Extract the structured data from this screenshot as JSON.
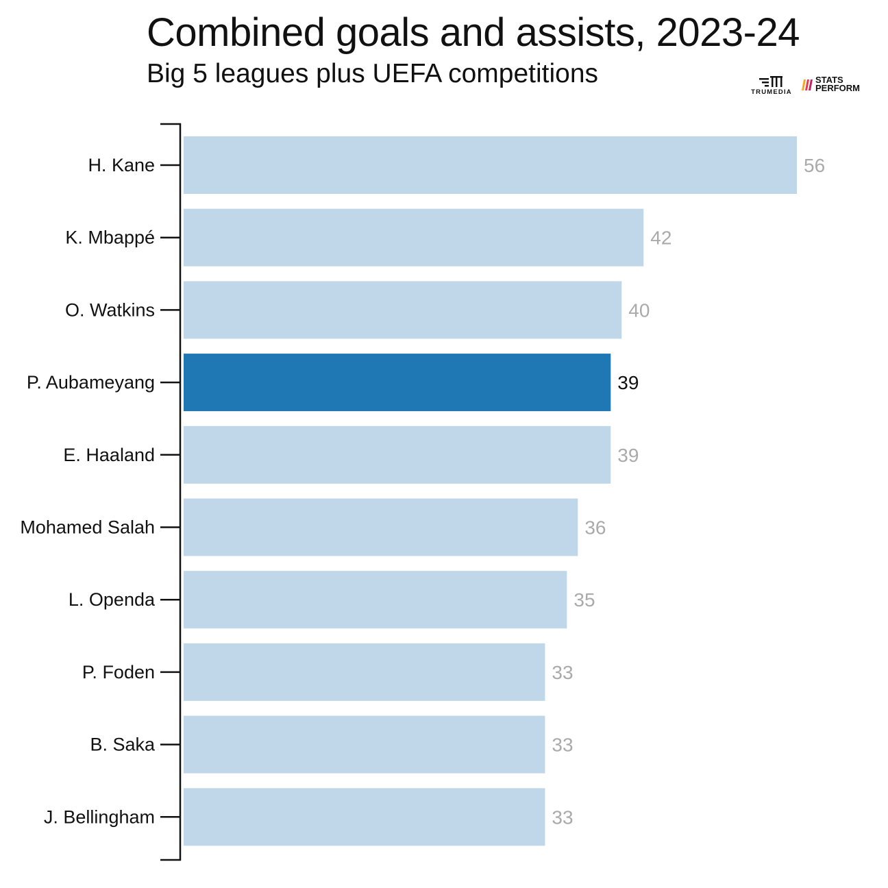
{
  "header": {
    "title": "Combined goals and assists, 2023-24",
    "subtitle": "Big 5 leagues plus UEFA competitions"
  },
  "logos": {
    "trumedia": "TRUMEDIA",
    "stats_perform_line1": "STATS",
    "stats_perform_line2": "PERFORM"
  },
  "colors": {
    "bar": "#c0d7ea",
    "highlight_bar": "#1f77b4",
    "value_label": "#aaaaaa",
    "highlight_value_label": "#111111",
    "axis": "#111111"
  },
  "chart_data": {
    "type": "bar",
    "orientation": "horizontal",
    "title": "Combined goals and assists, 2023-24",
    "subtitle": "Big 5 leagues plus UEFA competitions",
    "categories": [
      "H. Kane",
      "K. Mbappé",
      "O. Watkins",
      "P. Aubameyang",
      "E. Haaland",
      "Mohamed Salah",
      "L. Openda",
      "P. Foden",
      "B. Saka",
      "J. Bellingham"
    ],
    "values": [
      56,
      42,
      40,
      39,
      39,
      36,
      35,
      33,
      33,
      33
    ],
    "highlight": "P. Aubameyang",
    "xlim": [
      0,
      56
    ],
    "grid": false,
    "legend": "none"
  }
}
